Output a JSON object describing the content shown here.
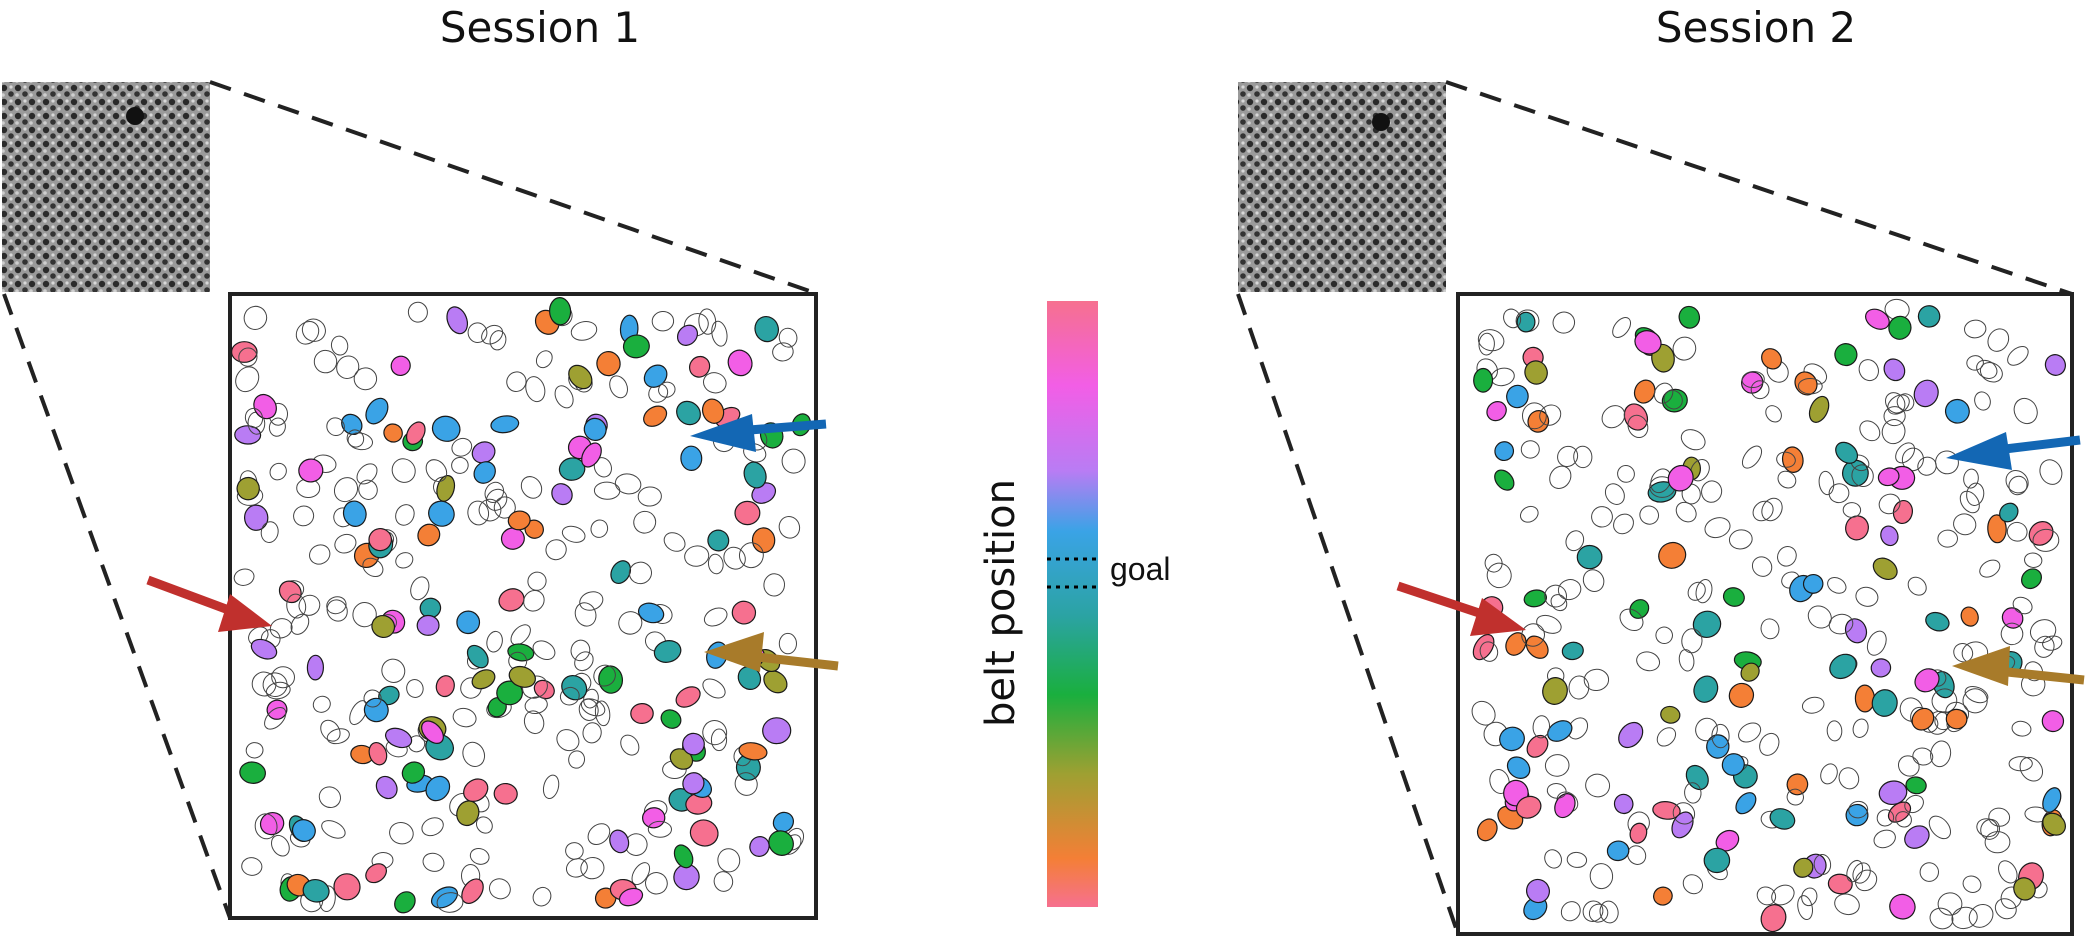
{
  "panels": [
    {
      "title": "Session 1"
    },
    {
      "title": "Session 2"
    }
  ],
  "colorbar": {
    "label": "belt position",
    "goal_label": "goal",
    "colors": [
      "#f6708f",
      "#f25ee6",
      "#b97cf4",
      "#3aa3e6",
      "#2ba3a3",
      "#1aaf3e",
      "#9ea032",
      "#f47f36"
    ]
  },
  "arrow_colors": {
    "red": "#c0302d",
    "blue": "#1367b4",
    "brown": "#a87b2a"
  }
}
